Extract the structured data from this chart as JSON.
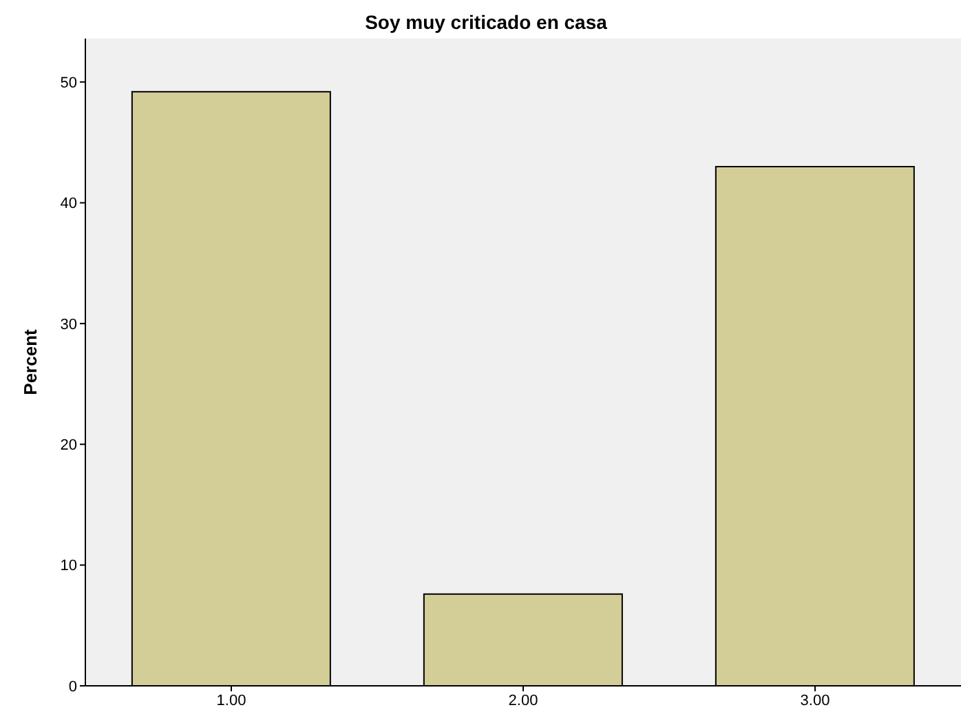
{
  "chart_data": {
    "type": "bar",
    "title": "Soy muy criticado en casa",
    "ylabel": "Percent",
    "categories": [
      "1.00",
      "2.00",
      "3.00"
    ],
    "values": [
      49.2,
      7.6,
      43.0
    ],
    "color": "#d3ce97",
    "ylim": [
      0,
      53.6
    ],
    "yticks": [
      0,
      10,
      20,
      30,
      40,
      50
    ],
    "grid": false,
    "legend": false
  }
}
